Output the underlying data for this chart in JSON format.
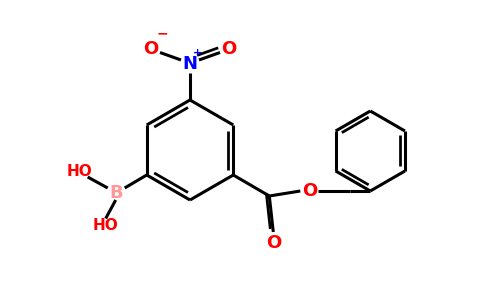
{
  "bg_color": "#ffffff",
  "bond_color": "#000000",
  "bond_width": 2.2,
  "N_color": "#0000ff",
  "O_color": "#ff0000",
  "B_color": "#ff9999",
  "figsize": [
    4.84,
    3.0
  ],
  "dpi": 100,
  "xlim": [
    0,
    9.68
  ],
  "ylim": [
    0,
    6.0
  ]
}
